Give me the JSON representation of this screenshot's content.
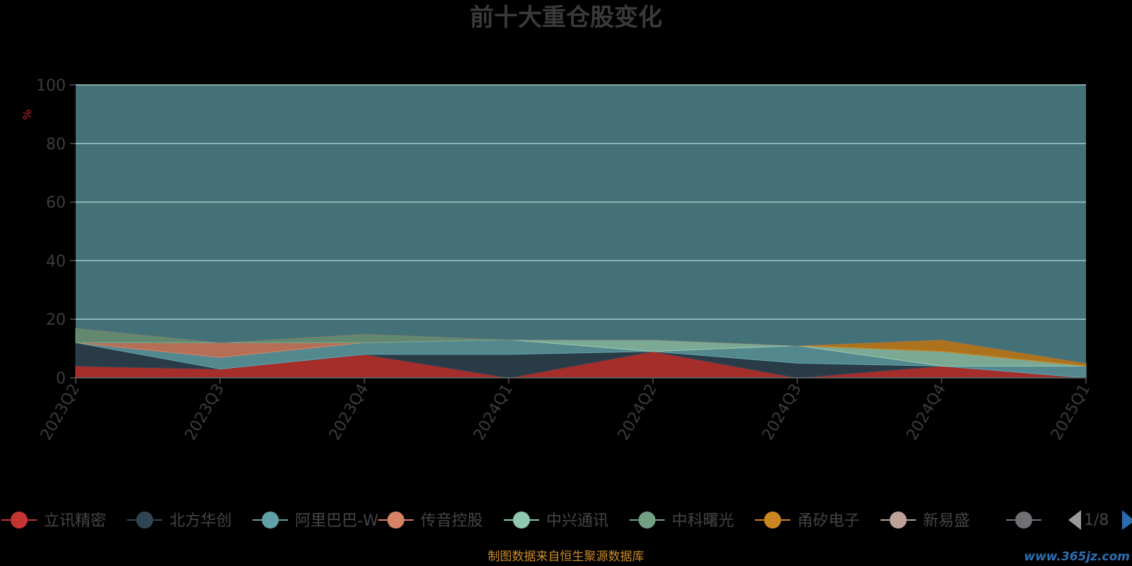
{
  "chart_data": {
    "type": "area",
    "title": "前十大重仓股变化",
    "ylabel": "%",
    "ylim": [
      0,
      100
    ],
    "yticks": [
      0,
      20,
      40,
      60,
      80,
      100
    ],
    "categories": [
      "2023Q2",
      "2023Q3",
      "2023Q4",
      "2024Q1",
      "2024Q2",
      "2024Q3",
      "2024Q4",
      "2025Q1"
    ],
    "grid": true,
    "legend_position": "bottom",
    "series": [
      {
        "name": "立讯精密",
        "color": "#c23531",
        "values": [
          4,
          3,
          8,
          0,
          9,
          0,
          4,
          0
        ]
      },
      {
        "name": "北方华创",
        "color": "#2f4554",
        "values": [
          8,
          0,
          0,
          8,
          0,
          5,
          0,
          0
        ]
      },
      {
        "name": "阿里巴巴-W",
        "color": "#61a0a8",
        "values": [
          0,
          4,
          4,
          5,
          0,
          6,
          0,
          4
        ]
      },
      {
        "name": "传音控股",
        "color": "#d48265",
        "values": [
          0,
          5,
          0,
          0,
          0,
          0,
          0,
          0
        ]
      },
      {
        "name": "中兴通讯",
        "color": "#91c7ae",
        "values": [
          0,
          0,
          0,
          0,
          4,
          0,
          5,
          0
        ]
      },
      {
        "name": "中科曙光",
        "color": "#749f83",
        "values": [
          5,
          0,
          3,
          0,
          0,
          0,
          0,
          0
        ]
      },
      {
        "name": "甬矽电子",
        "color": "#ca8622",
        "values": [
          0,
          0,
          0,
          0,
          0,
          0,
          4,
          1
        ]
      },
      {
        "name": "新易盛",
        "color": "#bda29a",
        "values": [
          0,
          0,
          0,
          0,
          0,
          0,
          0,
          0
        ]
      },
      {
        "name": "",
        "color": "#6e7074",
        "values": [
          0,
          0,
          0,
          0,
          0,
          0,
          0,
          0
        ]
      }
    ]
  },
  "legend": {
    "items": [
      "立讯精密",
      "北方华创",
      "阿里巴巴-W",
      "传音控股",
      "中兴通讯",
      "中科曙光",
      "甬矽电子",
      "新易盛",
      ""
    ],
    "page": "1/8"
  },
  "footer": {
    "source": "制图数据来自恒生聚源数据库",
    "watermark": "www.365jz.com"
  },
  "colors": {
    "background": "#000000",
    "top_area": "#447177",
    "grid_line": "#9ecbc9"
  }
}
